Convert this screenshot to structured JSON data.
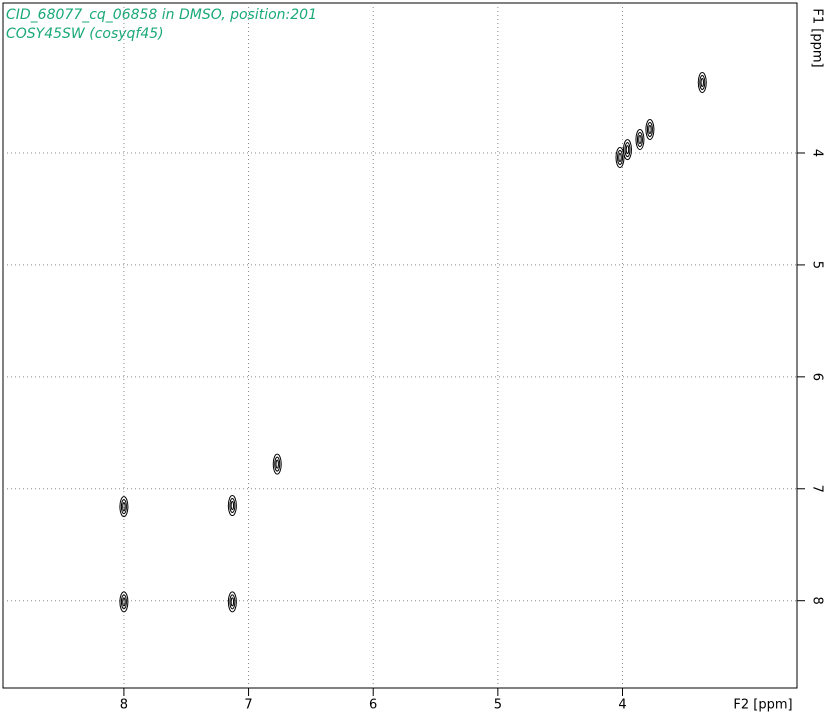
{
  "chart_data": {
    "type": "scatter",
    "title": "CID_68077_cq_06858 in DMSO, position:201",
    "subtitle": "COSY45SW (cosyqf45)",
    "x_label": "F2 [ppm]",
    "y_label": "F1 [ppm]",
    "x": [
      3.36,
      4.02,
      3.96,
      3.86,
      3.78,
      6.77,
      8.0,
      7.13,
      8.0,
      7.13
    ],
    "values": [
      3.37,
      4.04,
      3.97,
      3.88,
      3.79,
      6.78,
      7.16,
      7.15,
      8.01,
      8.01
    ],
    "color": "#000000",
    "title_color": "#1aa97a",
    "xlim": [
      8.97,
      2.6
    ],
    "ylim": [
      2.66,
      8.78
    ],
    "xticks": [
      8,
      7,
      6,
      5,
      4
    ],
    "yticks": [
      4,
      5,
      6,
      7,
      8
    ],
    "grid": true
  }
}
